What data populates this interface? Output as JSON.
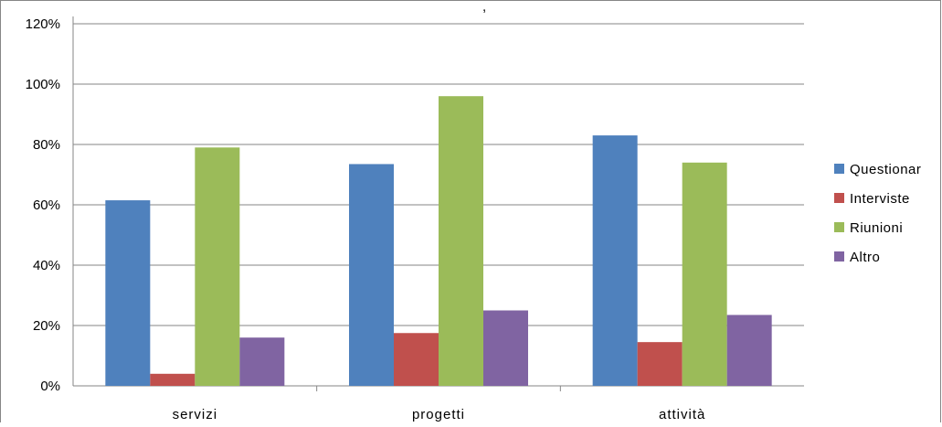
{
  "chart_data": {
    "type": "bar",
    "title_fragment": ",",
    "categories": [
      "servizi",
      "progetti",
      "attività"
    ],
    "series": [
      {
        "name": "Questionar",
        "color": "#4f81bd",
        "values": [
          61.5,
          73.5,
          83
        ]
      },
      {
        "name": "Interviste",
        "color": "#c0504d",
        "values": [
          4,
          17.5,
          14.5
        ]
      },
      {
        "name": "Riunioni",
        "color": "#9bbb59",
        "values": [
          79,
          96,
          74
        ]
      },
      {
        "name": "Altro",
        "color": "#8064a2",
        "values": [
          16,
          25,
          23.5
        ]
      }
    ],
    "ylim": [
      0,
      120
    ],
    "yticks": [
      "0%",
      "20%",
      "40%",
      "60%",
      "80%",
      "100%",
      "120%"
    ],
    "ytick_values": [
      0,
      20,
      40,
      60,
      80,
      100,
      120
    ],
    "grid": true,
    "legend_position": "right"
  }
}
